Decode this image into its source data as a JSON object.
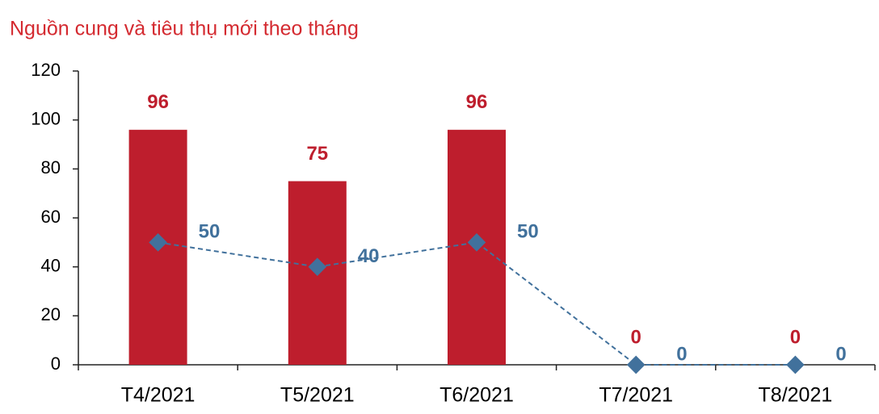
{
  "chart_data": {
    "type": "bar",
    "title": "Nguồn cung và tiêu thụ mới theo tháng",
    "categories": [
      "T4/2021",
      "T5/2021",
      "T6/2021",
      "T7/2021",
      "T8/2021"
    ],
    "series": [
      {
        "type": "bar",
        "color": "#be1e2d",
        "values": [
          96,
          75,
          96,
          0,
          0
        ]
      },
      {
        "type": "line",
        "color": "#41719c",
        "values": [
          50,
          40,
          50,
          0,
          0
        ]
      }
    ],
    "ylim": [
      0,
      120
    ],
    "yticks": [
      0,
      20,
      40,
      60,
      80,
      100,
      120
    ],
    "grid": false,
    "data_labels": true
  }
}
